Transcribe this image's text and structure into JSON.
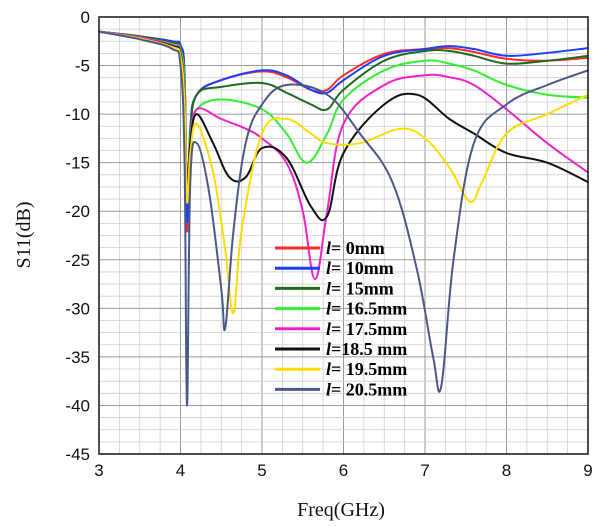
{
  "chart_data": {
    "type": "line",
    "title": "",
    "xlabel": "Freq(GHz)",
    "ylabel": "S11(dB)",
    "xlim": [
      3,
      9
    ],
    "ylim": [
      -45,
      0
    ],
    "xticks": [
      "3",
      "4",
      "5",
      "6",
      "7",
      "8",
      "9"
    ],
    "yticks": [
      "0",
      "-5",
      "-10",
      "-15",
      "-20",
      "-25",
      "-30",
      "-35",
      "-40",
      "-45"
    ],
    "grid": true,
    "legend_position": "center-bottom",
    "series": [
      {
        "name": "l= 0mm",
        "label_symbol": "l",
        "label_rest": "= 0mm",
        "color": "#ff2a2a",
        "x": [
          3.0,
          3.5,
          3.9,
          4.0,
          4.05,
          4.08,
          4.12,
          4.2,
          4.5,
          5.0,
          5.3,
          5.6,
          5.8,
          6.0,
          6.5,
          7.0,
          7.3,
          7.6,
          8.0,
          8.5,
          9.0
        ],
        "y": [
          -1.5,
          -2.0,
          -2.5,
          -3.0,
          -6.0,
          -22.0,
          -12.0,
          -8.0,
          -6.5,
          -5.6,
          -6.2,
          -7.5,
          -7.5,
          -6.0,
          -3.8,
          -3.3,
          -3.2,
          -3.6,
          -4.3,
          -4.5,
          -4.2
        ]
      },
      {
        "name": "l= 10mm",
        "label_symbol": "l",
        "label_rest": "= 10mm",
        "color": "#1f3dff",
        "x": [
          3.0,
          3.5,
          3.9,
          4.0,
          4.05,
          4.08,
          4.12,
          4.2,
          4.5,
          5.0,
          5.3,
          5.6,
          5.8,
          6.0,
          6.5,
          7.0,
          7.3,
          7.6,
          8.0,
          8.5,
          9.0
        ],
        "y": [
          -1.5,
          -2.0,
          -2.5,
          -2.9,
          -6.0,
          -21.0,
          -11.5,
          -8.0,
          -6.5,
          -5.5,
          -6.0,
          -7.5,
          -7.8,
          -6.5,
          -4.0,
          -3.3,
          -3.0,
          -3.3,
          -4.0,
          -3.7,
          -3.2
        ]
      },
      {
        "name": "l= 15mm",
        "label_symbol": "l",
        "label_rest": "= 15mm",
        "color": "#1e6b1e",
        "x": [
          3.0,
          3.5,
          3.9,
          4.0,
          4.05,
          4.08,
          4.12,
          4.2,
          4.5,
          5.0,
          5.3,
          5.6,
          5.8,
          6.0,
          6.5,
          7.0,
          7.3,
          7.6,
          8.0,
          8.5,
          9.0
        ],
        "y": [
          -1.5,
          -2.0,
          -2.7,
          -3.2,
          -6.5,
          -19.0,
          -12.0,
          -8.0,
          -7.2,
          -6.8,
          -7.8,
          -9.0,
          -9.5,
          -7.5,
          -4.5,
          -3.5,
          -3.5,
          -4.0,
          -4.8,
          -4.5,
          -4.0
        ]
      },
      {
        "name": "l= 16.5mm",
        "label_symbol": "l",
        "label_rest": "= 16.5mm",
        "color": "#33ee33",
        "x": [
          3.0,
          3.5,
          3.9,
          4.0,
          4.05,
          4.08,
          4.12,
          4.2,
          4.5,
          5.0,
          5.3,
          5.55,
          5.8,
          6.0,
          6.5,
          7.0,
          7.3,
          7.6,
          8.0,
          8.5,
          9.0
        ],
        "y": [
          -1.5,
          -2.1,
          -2.8,
          -3.4,
          -7.0,
          -18.0,
          -12.5,
          -9.5,
          -8.5,
          -9.5,
          -12.0,
          -15.0,
          -12.0,
          -8.5,
          -5.5,
          -4.5,
          -4.8,
          -5.5,
          -7.0,
          -8.0,
          -8.3
        ]
      },
      {
        "name": "l= 17.5mm",
        "label_symbol": "l",
        "label_rest": "= 17.5mm",
        "color": "#ee22cc",
        "x": [
          3.0,
          3.5,
          3.9,
          4.0,
          4.05,
          4.08,
          4.12,
          4.2,
          4.5,
          4.8,
          5.0,
          5.3,
          5.5,
          5.65,
          5.8,
          6.0,
          6.5,
          7.0,
          7.3,
          7.6,
          8.0,
          8.5,
          9.0
        ],
        "y": [
          -1.5,
          -2.1,
          -2.9,
          -3.6,
          -8.0,
          -17.5,
          -13.0,
          -9.5,
          -10.5,
          -11.5,
          -12.5,
          -15.0,
          -20.0,
          -27.0,
          -20.0,
          -11.0,
          -7.0,
          -6.0,
          -6.2,
          -7.0,
          -9.5,
          -13.0,
          -16.0
        ]
      },
      {
        "name": "l=18.5 mm",
        "label_symbol": "l",
        "label_rest": "=18.5 mm",
        "color": "#111111",
        "x": [
          3.0,
          3.5,
          3.9,
          4.0,
          4.05,
          4.08,
          4.12,
          4.2,
          4.4,
          4.6,
          4.8,
          5.0,
          5.3,
          5.6,
          5.8,
          6.0,
          6.5,
          6.9,
          7.3,
          7.6,
          8.0,
          8.5,
          9.0
        ],
        "y": [
          -1.5,
          -2.2,
          -3.0,
          -3.8,
          -8.5,
          -18.0,
          -13.0,
          -10.0,
          -13.0,
          -16.5,
          -16.5,
          -13.5,
          -14.5,
          -19.5,
          -20.5,
          -14.0,
          -9.0,
          -8.0,
          -10.5,
          -12.0,
          -14.0,
          -15.0,
          -17.0
        ]
      },
      {
        "name": "l= 19.5mm",
        "label_symbol": "l",
        "label_rest": "= 19.5mm",
        "color": "#ffdd00",
        "x": [
          3.0,
          3.5,
          3.9,
          4.0,
          4.05,
          4.08,
          4.12,
          4.2,
          4.4,
          4.55,
          4.65,
          4.75,
          5.0,
          5.3,
          5.6,
          5.8,
          6.2,
          6.7,
          7.0,
          7.3,
          7.55,
          7.7,
          8.0,
          8.5,
          9.0
        ],
        "y": [
          -1.5,
          -2.2,
          -3.1,
          -4.0,
          -9.0,
          -19.0,
          -14.0,
          -11.0,
          -16.0,
          -24.0,
          -30.5,
          -22.0,
          -12.0,
          -10.5,
          -12.0,
          -13.0,
          -13.0,
          -11.5,
          -12.5,
          -15.5,
          -19.0,
          -17.0,
          -12.0,
          -10.0,
          -8.0
        ]
      },
      {
        "name": "l= 20.5mm",
        "label_symbol": "l",
        "label_rest": "= 20.5mm",
        "color": "#4a5a88",
        "x": [
          3.0,
          3.5,
          3.9,
          4.0,
          4.05,
          4.08,
          4.12,
          4.2,
          4.35,
          4.5,
          4.55,
          4.65,
          4.8,
          5.0,
          5.3,
          5.8,
          6.2,
          6.6,
          6.9,
          7.1,
          7.2,
          7.35,
          7.6,
          8.0,
          8.5,
          9.0
        ],
        "y": [
          -1.5,
          -2.3,
          -3.3,
          -5.0,
          -15.0,
          -40.0,
          -17.0,
          -13.0,
          -18.0,
          -28.0,
          -32.0,
          -22.0,
          -13.0,
          -9.0,
          -7.0,
          -8.0,
          -12.0,
          -17.0,
          -26.0,
          -35.0,
          -38.0,
          -25.0,
          -13.0,
          -9.0,
          -7.0,
          -5.5
        ]
      }
    ]
  }
}
